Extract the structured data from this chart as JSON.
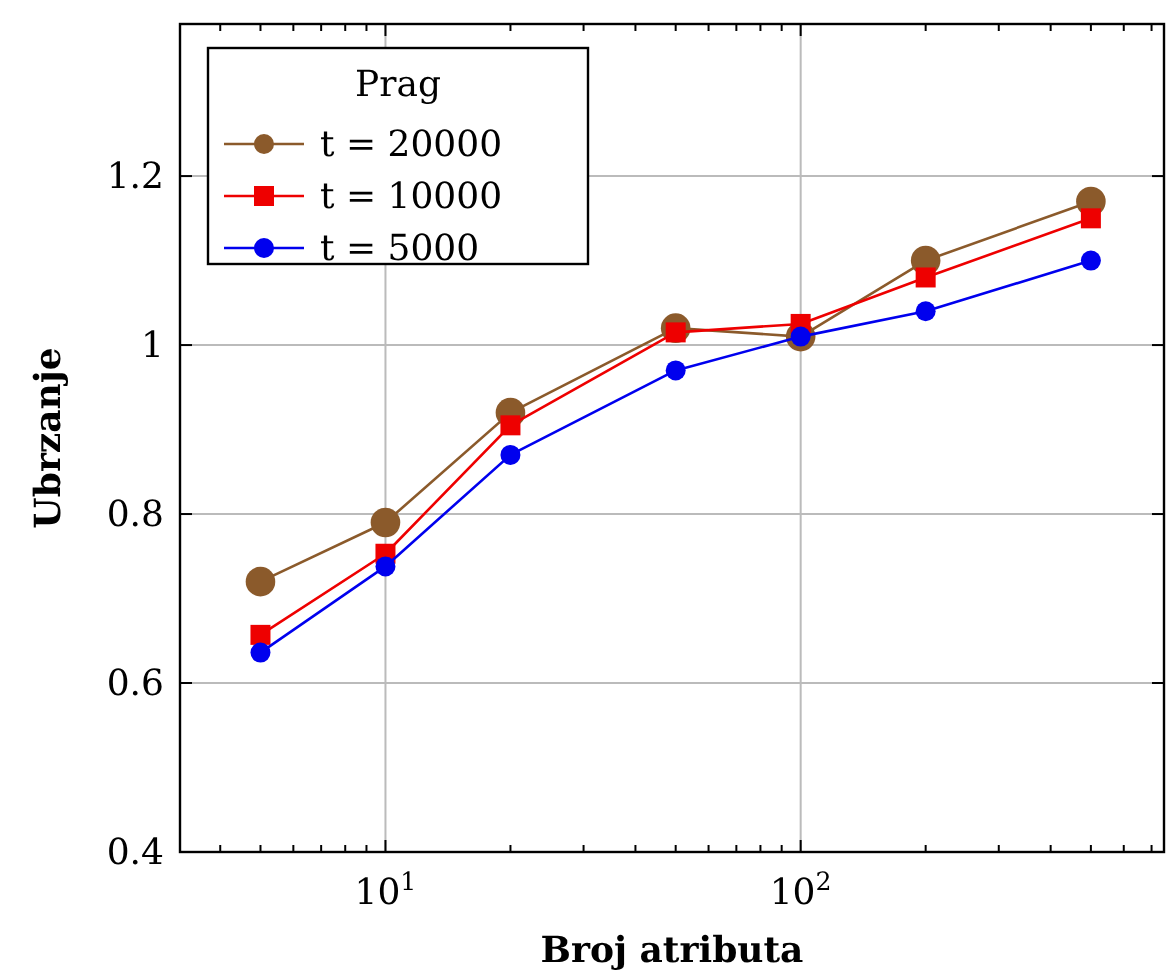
{
  "chart_data": {
    "type": "line",
    "xlabel": "Broj atributa",
    "ylabel": "Ubrzanje",
    "legend_title": "Prag",
    "log": "x",
    "grid": true,
    "legend": "top left",
    "line_style": "solid",
    "xlim": [
      3.2,
      750
    ],
    "ylim": [
      0.4,
      1.38
    ],
    "xticks": [
      {
        "value": 4,
        "label": null
      },
      {
        "value": 5,
        "label": null
      },
      {
        "value": 6,
        "label": null
      },
      {
        "value": 7,
        "label": null
      },
      {
        "value": 8,
        "label": null
      },
      {
        "value": 9,
        "label": null
      },
      {
        "value": 10,
        "label": "10$^{1}$"
      },
      {
        "value": 20,
        "label": null
      },
      {
        "value": 30,
        "label": null
      },
      {
        "value": 40,
        "label": null
      },
      {
        "value": 50,
        "label": null
      },
      {
        "value": 60,
        "label": null
      },
      {
        "value": 70,
        "label": null
      },
      {
        "value": 80,
        "label": null
      },
      {
        "value": 90,
        "label": null
      },
      {
        "value": 100,
        "label": "10$^{2}$"
      },
      {
        "value": 200,
        "label": null
      },
      {
        "value": 300,
        "label": null
      },
      {
        "value": 400,
        "label": null
      },
      {
        "value": 500,
        "label": null
      },
      {
        "value": 600,
        "label": null
      },
      {
        "value": 700,
        "label": null
      }
    ],
    "yticks": [
      0.4,
      0.6,
      0.8,
      1,
      1.2
    ],
    "x": [
      5,
      10,
      20,
      50,
      100,
      200,
      500
    ],
    "series": [
      {
        "name": "t = 20000",
        "color": "#8b5a2b",
        "marker": "circle",
        "values": [
          0.72,
          0.79,
          0.92,
          1.02,
          1.01,
          1.1,
          1.17
        ]
      },
      {
        "name": "t = 10000",
        "color": "#ee0000",
        "marker": "square",
        "values": [
          0.657,
          0.753,
          0.905,
          1.015,
          1.025,
          1.08,
          1.15
        ]
      },
      {
        "name": "t = 5000",
        "color": "#0000ee",
        "marker": "circle",
        "values": [
          0.636,
          0.738,
          0.87,
          0.97,
          1.01,
          1.04,
          1.1
        ]
      }
    ]
  }
}
